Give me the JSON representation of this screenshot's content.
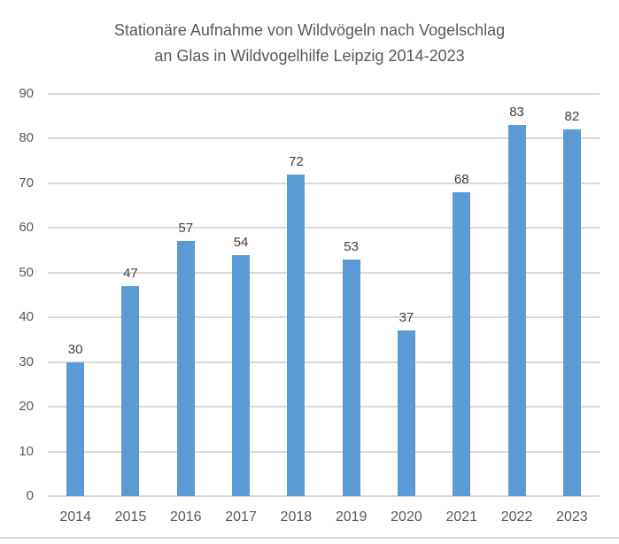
{
  "chart_data": {
    "type": "bar",
    "title": "Stationäre Aufnahme von Wildvögeln nach Vogelschlag an Glas in Wildvogelhilfe Leipzig 2014-2023",
    "title_lines": [
      "Stationäre Aufnahme von Wildvögeln nach Vogelschlag",
      "an Glas in Wildvogelhilfe Leipzig 2014-2023"
    ],
    "categories": [
      "2014",
      "2015",
      "2016",
      "2017",
      "2018",
      "2019",
      "2020",
      "2021",
      "2022",
      "2023"
    ],
    "values": [
      30,
      47,
      57,
      54,
      72,
      53,
      37,
      68,
      83,
      82
    ],
    "xlabel": "",
    "ylabel": "",
    "ylim": [
      0,
      90
    ],
    "yticks": [
      0,
      10,
      20,
      30,
      40,
      50,
      60,
      70,
      80,
      90
    ],
    "grid": "horizontal",
    "legend": "none",
    "data_labels_visible": true,
    "colors": {
      "bar": "#5B9BD5",
      "gridline": "#D9D9D9",
      "axis_label": "#595959",
      "title": "#595959",
      "data_label": "#404040",
      "bottom_separator": "#D9D9D9",
      "background": "#FFFFFF"
    }
  }
}
